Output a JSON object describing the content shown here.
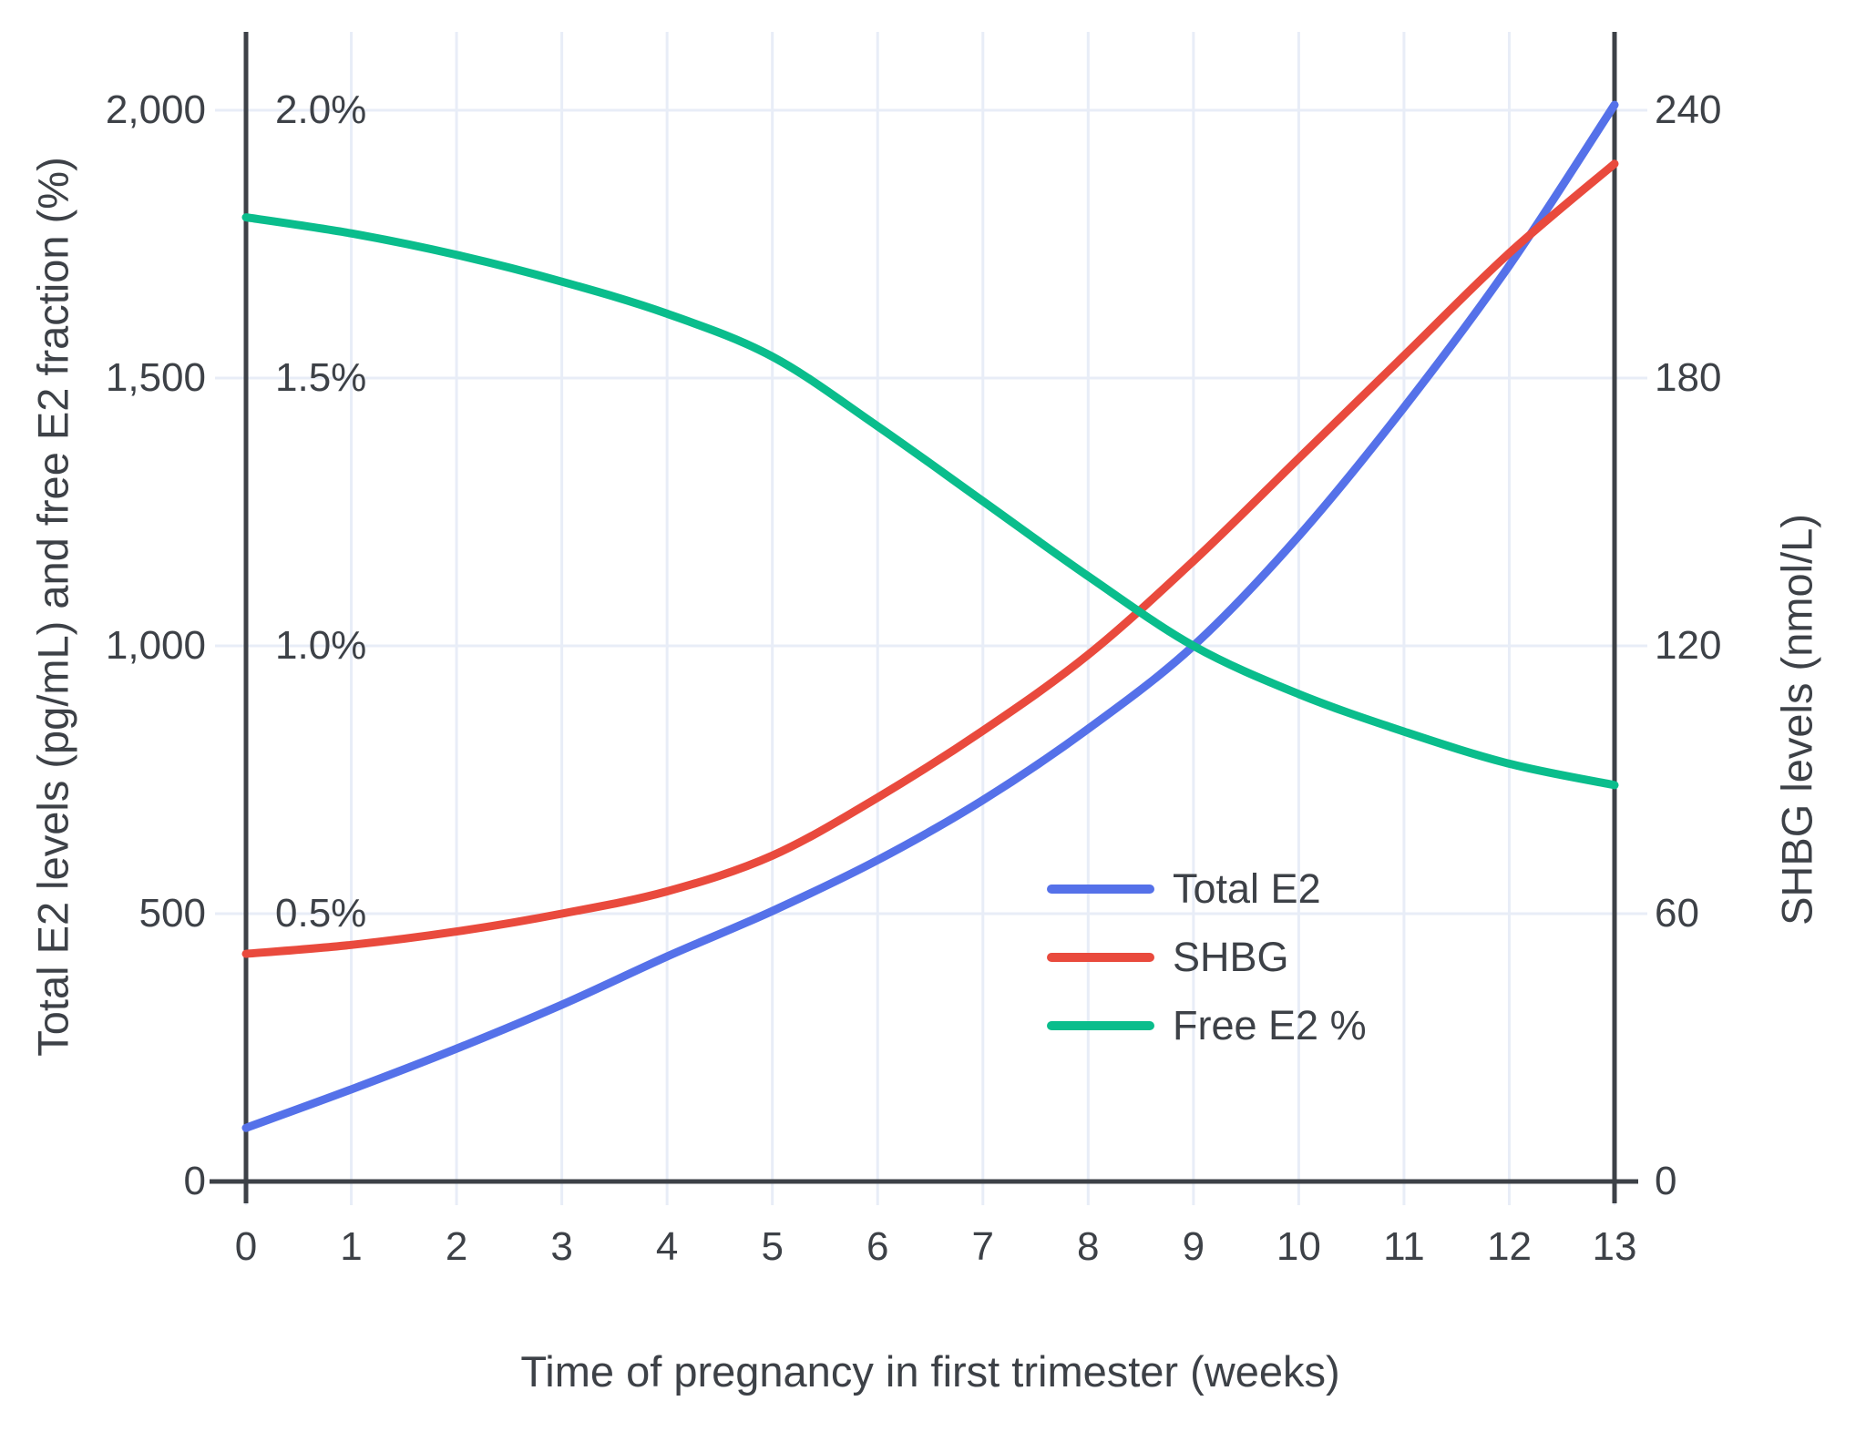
{
  "axes": {
    "x": {
      "title": "Time of pregnancy in first trimester (weeks)",
      "tick_labels": [
        "0",
        "1",
        "2",
        "3",
        "4",
        "5",
        "6",
        "7",
        "8",
        "9",
        "10",
        "11",
        "12",
        "13"
      ],
      "tick_values": [
        0,
        1,
        2,
        3,
        4,
        5,
        6,
        7,
        8,
        9,
        10,
        11,
        12,
        13
      ]
    },
    "y_left": {
      "title": "Total E2 levels (pg/mL) and free E2 fraction (%)",
      "tick_labels": [
        "2,000",
        "1,500",
        "1,000",
        "500",
        "0"
      ],
      "tick_values": [
        2000,
        1500,
        1000,
        500,
        0
      ],
      "percent_tick_labels": [
        "2.0%",
        "1.5%",
        "1.0%",
        "0.5%"
      ],
      "percent_tick_values": [
        2000,
        1500,
        1000,
        500
      ]
    },
    "y_right": {
      "title": "SHBG levels (nmol/L)",
      "tick_labels": [
        "240",
        "180",
        "120",
        "60",
        "0"
      ],
      "tick_values": [
        240,
        180,
        120,
        60,
        0
      ]
    }
  },
  "legend": [
    {
      "label": "Total E2",
      "color": "#5571e9"
    },
    {
      "label": "SHBG",
      "color": "#e94a3d"
    },
    {
      "label": "Free E2 %",
      "color": "#0abd8c"
    }
  ],
  "colors": {
    "total_e2": "#5571e9",
    "shbg": "#e94a3d",
    "free_e2": "#0abd8c",
    "gridline": "#e8edf7",
    "axis_line": "#3d4147",
    "text": "#3d4147",
    "background": "#ffffff"
  },
  "chart_data": {
    "type": "line",
    "title": "",
    "xlabel": "Time of pregnancy in first trimester (weeks)",
    "ylabel_left": "Total E2 levels (pg/mL) and free E2 fraction (%)",
    "ylabel_right": "SHBG levels (nmol/L)",
    "x": [
      0,
      1,
      2,
      3,
      4,
      5,
      6,
      7,
      8,
      9,
      10,
      11,
      12,
      13
    ],
    "xlim": [
      0,
      13
    ],
    "ylim_left": [
      0,
      2150
    ],
    "ylim_right": [
      0,
      258
    ],
    "grid": true,
    "legend_position": "inside center-right",
    "note_axis_mapping": "Free E2 % is plotted on the left axis where 0.5%=500, 1.0%=1000, 1.5%=1500, 2.0%=2000; right axis SHBG where 60=500-left, 120=1000-left, 180=1500-left, 240=2000-left",
    "series": [
      {
        "name": "Total E2",
        "axis": "left",
        "units": "pg/mL",
        "color": "#5571e9",
        "values": [
          100,
          172,
          248,
          330,
          420,
          505,
          600,
          712,
          845,
          1000,
          1205,
          1445,
          1710,
          2010
        ]
      },
      {
        "name": "SHBG",
        "axis": "right",
        "units": "nmol/L",
        "color": "#e94a3d",
        "values": [
          51,
          53,
          56,
          60,
          65,
          73,
          86,
          101,
          118,
          139,
          162,
          185,
          208,
          228
        ]
      },
      {
        "name": "Free E2 %",
        "axis": "left-percent",
        "units": "%",
        "color": "#0abd8c",
        "values": [
          1.8,
          1.77,
          1.73,
          1.68,
          1.62,
          1.54,
          1.41,
          1.27,
          1.13,
          1.0,
          0.91,
          0.84,
          0.78,
          0.74
        ]
      }
    ]
  }
}
